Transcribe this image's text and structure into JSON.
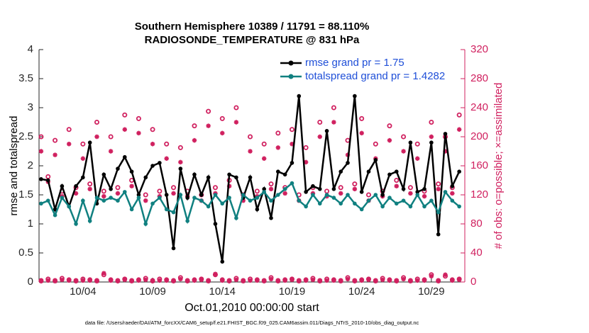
{
  "chart_data": {
    "type": "line",
    "title": "Southern Hemisphere 10389 / 11791 = 88.110%",
    "subtitle": "RADIOSONDE_TEMPERATURE @ 831 hPa",
    "xlabel": "Oct.01,2010 00:00:00 start",
    "ylabel": "rmse and totalspread",
    "y2label": "# of obs: o=possible; ×=assimilated",
    "footnote": "data file: /Users/raeder/DAI/ATM_forcXX/CAM6_setup/f.e21.FHIST_BGC.f09_025.CAM6assim.011/Diags_NTrS_2010-10/obs_diag_output.nc",
    "legend": "upper right",
    "x": [
      0,
      0.5,
      1,
      1.5,
      2,
      2.5,
      3,
      3.5,
      4,
      4.5,
      5,
      5.5,
      6,
      6.5,
      7,
      7.5,
      8,
      8.5,
      9,
      9.5,
      10,
      10.5,
      11,
      11.5,
      12,
      12.5,
      13,
      13.5,
      14,
      14.5,
      15,
      15.5,
      16,
      16.5,
      17,
      17.5,
      18,
      18.5,
      19,
      19.5,
      20,
      20.5,
      21,
      21.5,
      22,
      22.5,
      23,
      23.5,
      24,
      24.5,
      25,
      25.5,
      26,
      26.5,
      27,
      27.5,
      28,
      28.5,
      29,
      29.5,
      30
    ],
    "xlim": [
      -0.15,
      30.4
    ],
    "xticks": [
      {
        "value": 3,
        "label": "10/04"
      },
      {
        "value": 8,
        "label": "10/09"
      },
      {
        "value": 13,
        "label": "10/14"
      },
      {
        "value": 18,
        "label": "10/19"
      },
      {
        "value": 23,
        "label": "10/24"
      },
      {
        "value": 28,
        "label": "10/29"
      }
    ],
    "ylim": [
      0,
      4
    ],
    "yticks": [
      0,
      0.5,
      1,
      1.5,
      2,
      2.5,
      3,
      3.5,
      4
    ],
    "y2lim": [
      0,
      320
    ],
    "y2ticks": [
      0,
      40,
      80,
      120,
      160,
      200,
      240,
      280,
      320
    ],
    "series": [
      {
        "name": "rmse grand pr = 1.75",
        "color": "#000000",
        "marker": "dot",
        "line": true,
        "values": [
          1.77,
          1.75,
          1.25,
          1.65,
          1.3,
          1.65,
          1.8,
          2.4,
          1.35,
          1.85,
          1.6,
          1.95,
          2.15,
          1.9,
          1.5,
          1.8,
          2.0,
          2.05,
          1.5,
          0.58,
          1.95,
          1.45,
          1.85,
          1.5,
          1.8,
          1.0,
          0.35,
          1.85,
          1.8,
          1.45,
          1.8,
          1.25,
          1.6,
          1.1,
          1.9,
          1.85,
          2.05,
          3.2,
          1.55,
          1.65,
          1.6,
          2.6,
          1.6,
          1.9,
          2.05,
          3.2,
          1.55,
          1.9,
          2.1,
          1.5,
          1.85,
          1.9,
          1.6,
          2.4,
          1.55,
          1.6,
          2.4,
          0.82,
          2.55,
          1.65,
          1.9
        ]
      },
      {
        "name": "totalspread grand pr = 1.4282",
        "color": "#108080",
        "marker": "dot",
        "line": true,
        "values": [
          1.35,
          1.4,
          1.15,
          1.45,
          1.3,
          1.0,
          1.4,
          1.05,
          1.45,
          1.4,
          1.45,
          1.4,
          1.55,
          1.25,
          1.45,
          1.0,
          1.35,
          1.45,
          1.25,
          1.2,
          1.5,
          1.05,
          1.45,
          1.4,
          1.3,
          1.5,
          1.35,
          1.45,
          1.1,
          1.5,
          1.4,
          1.45,
          1.55,
          1.4,
          1.5,
          1.6,
          1.7,
          1.4,
          1.3,
          1.5,
          1.35,
          1.5,
          1.45,
          1.35,
          1.5,
          1.35,
          1.25,
          1.4,
          1.5,
          1.3,
          1.45,
          1.35,
          1.4,
          1.3,
          1.5,
          1.3,
          1.4,
          1.2,
          1.55,
          1.4,
          1.3
        ]
      },
      {
        "axis": "y2",
        "color": "#d0205f",
        "marker": "o",
        "line": false,
        "values": [
          200,
          145,
          195,
          125,
          210,
          130,
          190,
          135,
          220,
          125,
          200,
          130,
          230,
          140,
          225,
          120,
          210,
          125,
          190,
          130,
          185,
          125,
          215,
          120,
          235,
          130,
          225,
          140,
          240,
          120,
          200,
          125,
          190,
          135,
          205,
          130,
          210,
          120,
          185,
          130,
          220,
          125,
          240,
          130,
          195,
          135,
          225,
          120,
          190,
          125,
          215,
          140,
          200,
          130,
          190,
          125,
          220,
          135,
          200,
          130,
          230
        ]
      },
      {
        "axis": "y2",
        "color": "#d0205f",
        "marker": "*",
        "line": false,
        "values": [
          180,
          138,
          175,
          118,
          190,
          122,
          170,
          128,
          200,
          118,
          180,
          122,
          210,
          132,
          205,
          112,
          190,
          118,
          170,
          122,
          165,
          118,
          195,
          112,
          215,
          122,
          205,
          132,
          220,
          112,
          180,
          118,
          170,
          128,
          185,
          122,
          190,
          112,
          165,
          122,
          200,
          118,
          220,
          122,
          175,
          128,
          205,
          112,
          170,
          118,
          195,
          132,
          180,
          122,
          170,
          118,
          200,
          128,
          180,
          122,
          210
        ]
      },
      {
        "axis": "y2",
        "color": "#d0205f",
        "marker": "o",
        "line": false,
        "values": [
          2,
          4,
          2,
          5,
          3,
          2,
          4,
          3,
          2,
          10,
          3,
          2,
          4,
          2,
          3,
          5,
          2,
          4,
          3,
          2,
          6,
          2,
          3,
          4,
          2,
          10,
          3,
          2,
          5,
          2,
          4,
          3,
          2,
          6,
          2,
          3,
          4,
          2,
          3,
          5,
          2,
          4,
          3,
          2,
          6,
          2,
          3,
          4,
          2,
          5,
          3,
          2,
          6,
          2,
          4,
          3,
          10,
          2,
          8,
          3,
          4
        ]
      },
      {
        "axis": "y2",
        "color": "#d0205f",
        "marker": "*",
        "line": false,
        "values": [
          1,
          2,
          1,
          3,
          2,
          1,
          2,
          2,
          1,
          12,
          2,
          1,
          3,
          1,
          2,
          3,
          1,
          2,
          2,
          1,
          4,
          1,
          2,
          3,
          1,
          11,
          2,
          1,
          3,
          1,
          2,
          2,
          1,
          4,
          1,
          2,
          3,
          1,
          2,
          3,
          1,
          2,
          2,
          1,
          4,
          1,
          2,
          3,
          1,
          3,
          2,
          1,
          4,
          1,
          2,
          2,
          8,
          1,
          10,
          2,
          3
        ]
      }
    ]
  }
}
